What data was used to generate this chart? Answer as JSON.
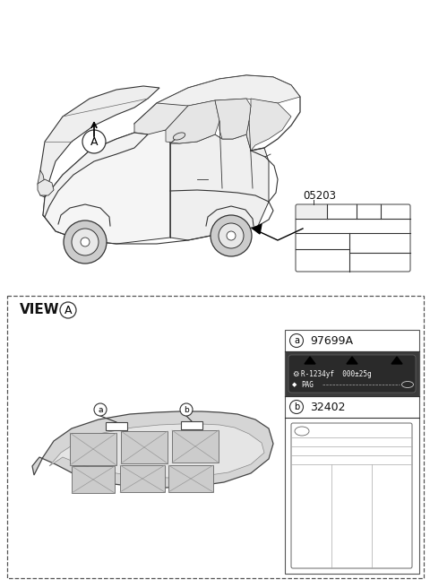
{
  "bg_color": "#ffffff",
  "top_label_code": "05203",
  "view_label": "VIEW",
  "label_a_code": "97699A",
  "label_b_code": "32402",
  "refrigerant_text": "R-1234yf  000±25g",
  "pag_text": "PAG",
  "fig_width": 4.8,
  "fig_height": 6.56,
  "dpi": 100,
  "line_color": "#333333",
  "dark_bg": "#3a3a3a",
  "light_gray": "#d0d0d0",
  "mid_gray": "#888888"
}
